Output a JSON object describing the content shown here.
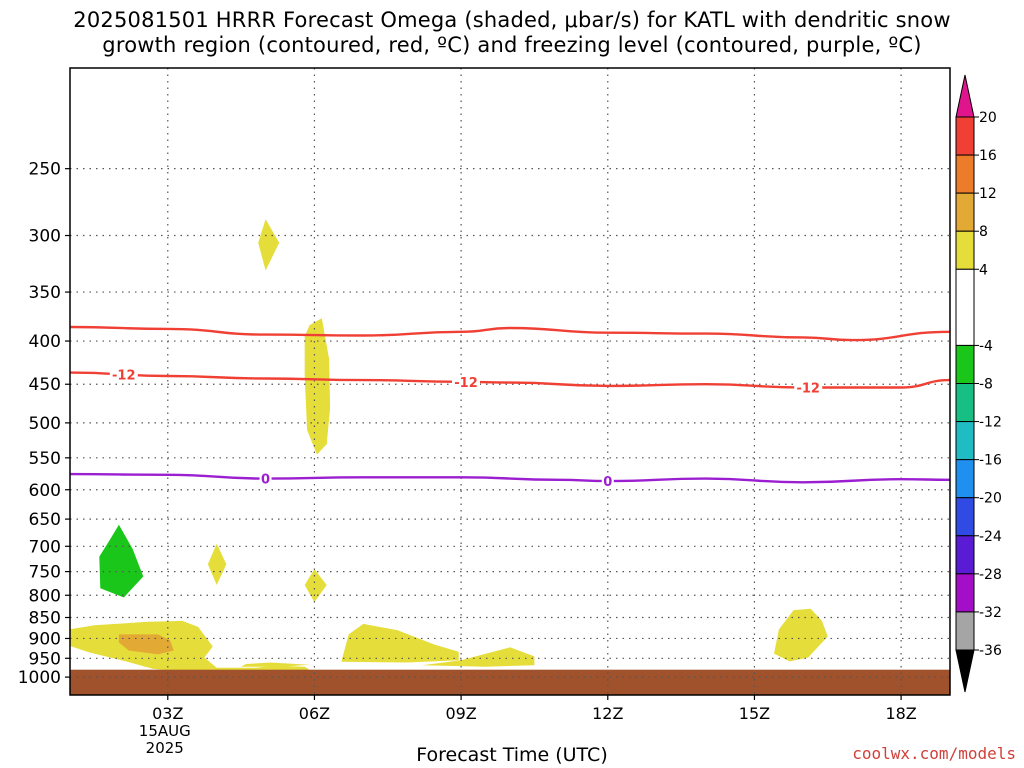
{
  "title_line1": "2025081501 HRRR Forecast Omega (shaded, μbar/s) for KATL with dendritic snow",
  "title_line2": "growth region (contoured, red, ºC) and freezing level (contoured, purple, ºC)",
  "credit": "coolwx.com/models",
  "chart_data": {
    "type": "contour",
    "title": "2025081501 HRRR Forecast Omega (shaded, μbar/s) for KATL with dendritic snow growth region (contoured, red, ºC) and freezing level (contoured, purple, ºC)",
    "xlabel": "Forecast Time (UTC)",
    "ylabel": "",
    "x_unit": "hour (UTC, 15 Aug 2025)",
    "y_unit": "hPa",
    "xlim": [
      1,
      19
    ],
    "ylim": [
      1050,
      190
    ],
    "y_scale": "log",
    "grid": true,
    "x_ticks": [
      {
        "x": 3,
        "label": "03Z",
        "sub1": "15AUG",
        "sub2": "2025"
      },
      {
        "x": 6,
        "label": "06Z"
      },
      {
        "x": 9,
        "label": "09Z"
      },
      {
        "x": 12,
        "label": "12Z"
      },
      {
        "x": 15,
        "label": "15Z"
      },
      {
        "x": 18,
        "label": "18Z"
      }
    ],
    "y_ticks": [
      250,
      300,
      350,
      400,
      450,
      500,
      550,
      600,
      650,
      700,
      750,
      800,
      850,
      900,
      950,
      1000
    ],
    "surface_fill": {
      "from": 980,
      "to": 1050,
      "color": "#a0522d"
    },
    "colorbar": {
      "labels": [
        "20",
        "16",
        "12",
        "8",
        "4",
        "-4",
        "-8",
        "-12",
        "-16",
        "-20",
        "-24",
        "-28",
        "-32",
        "-36"
      ],
      "bins": [
        {
          "from": 16,
          "to": 20,
          "color": "#f04035"
        },
        {
          "from": 12,
          "to": 16,
          "color": "#ec7b2a"
        },
        {
          "from": 8,
          "to": 12,
          "color": "#e3a935"
        },
        {
          "from": 4,
          "to": 8,
          "color": "#e5dd3a"
        },
        {
          "from": -4,
          "to": 4,
          "color": "#ffffff"
        },
        {
          "from": -8,
          "to": -4,
          "color": "#19c619"
        },
        {
          "from": -12,
          "to": -8,
          "color": "#17bf85"
        },
        {
          "from": -16,
          "to": -12,
          "color": "#1fbcc4"
        },
        {
          "from": -20,
          "to": -16,
          "color": "#1f8ff0"
        },
        {
          "from": -24,
          "to": -20,
          "color": "#2f4be3"
        },
        {
          "from": -28,
          "to": -24,
          "color": "#5a1bd5"
        },
        {
          "from": -32,
          "to": -28,
          "color": "#a30fc9"
        },
        {
          "from": -36,
          "to": -32,
          "color": "#a5a5a5"
        }
      ],
      "top_arrow_color": "#e0148c",
      "bottom_arrow_color": "#000000"
    },
    "shaded_regions": [
      {
        "name": "omega 4 to 8",
        "color": "#e5dd3a",
        "points": [
          [
            5.0,
            287
          ],
          [
            5.28,
            306
          ],
          [
            5.0,
            330
          ],
          [
            4.85,
            306
          ]
        ]
      },
      {
        "name": "omega 4 to 8",
        "color": "#e5dd3a",
        "points": [
          [
            5.9,
            383
          ],
          [
            6.15,
            376
          ],
          [
            6.3,
            420
          ],
          [
            6.32,
            480
          ],
          [
            6.25,
            530
          ],
          [
            6.05,
            545
          ],
          [
            5.85,
            510
          ],
          [
            5.8,
            440
          ],
          [
            5.8,
            395
          ]
        ]
      },
      {
        "name": "omega 4 to 8",
        "color": "#e5dd3a",
        "points": [
          [
            4.0,
            695
          ],
          [
            4.2,
            735
          ],
          [
            4.0,
            778
          ],
          [
            3.82,
            735
          ]
        ]
      },
      {
        "name": "omega 4 to 8",
        "color": "#e5dd3a",
        "points": [
          [
            6.0,
            745
          ],
          [
            6.25,
            778
          ],
          [
            6.0,
            815
          ],
          [
            5.8,
            778
          ]
        ]
      },
      {
        "name": "omega 4 to 8",
        "color": "#e5dd3a",
        "points": [
          [
            0.88,
            880
          ],
          [
            1.5,
            868
          ],
          [
            2.6,
            860
          ],
          [
            3.3,
            858
          ],
          [
            3.62,
            872
          ],
          [
            3.92,
            920
          ],
          [
            3.75,
            948
          ],
          [
            4.0,
            975
          ],
          [
            4.8,
            975
          ],
          [
            5.2,
            969
          ],
          [
            5.8,
            972
          ],
          [
            5.9,
            980
          ],
          [
            4.5,
            990
          ],
          [
            3.6,
            988
          ],
          [
            2.7,
            978
          ],
          [
            2.2,
            960
          ],
          [
            1.4,
            935
          ],
          [
            0.98,
            918
          ]
        ]
      },
      {
        "name": "omega 4 to 8",
        "color": "#e5dd3a",
        "points": [
          [
            7.0,
            865
          ],
          [
            7.7,
            880
          ],
          [
            8.45,
            915
          ],
          [
            8.95,
            933
          ],
          [
            8.95,
            955
          ],
          [
            7.9,
            961
          ],
          [
            6.55,
            959
          ],
          [
            6.6,
            935
          ],
          [
            6.7,
            890
          ]
        ]
      },
      {
        "name": "omega 4 to 8",
        "color": "#e5dd3a",
        "points": [
          [
            10.0,
            922
          ],
          [
            10.5,
            945
          ],
          [
            10.5,
            968
          ],
          [
            9.5,
            972
          ],
          [
            8.2,
            968
          ],
          [
            9.0,
            955
          ],
          [
            9.6,
            935
          ]
        ]
      },
      {
        "name": "omega 4 to 8",
        "color": "#e5dd3a",
        "points": [
          [
            15.8,
            833
          ],
          [
            16.15,
            830
          ],
          [
            16.38,
            858
          ],
          [
            16.5,
            895
          ],
          [
            16.1,
            948
          ],
          [
            15.72,
            958
          ],
          [
            15.4,
            938
          ],
          [
            15.5,
            878
          ]
        ]
      },
      {
        "name": "omega 4 to 8",
        "color": "#e5dd3a",
        "points": [
          [
            4.6,
            965
          ],
          [
            5.1,
            961
          ],
          [
            5.9,
            967
          ],
          [
            5.3,
            972
          ],
          [
            4.5,
            972
          ]
        ]
      },
      {
        "name": "omega 8 to 12",
        "color": "#e3a935",
        "points": [
          [
            2.0,
            890
          ],
          [
            2.8,
            890
          ],
          [
            3.05,
            905
          ],
          [
            3.12,
            930
          ],
          [
            2.8,
            940
          ],
          [
            2.2,
            930
          ],
          [
            2.0,
            910
          ]
        ]
      },
      {
        "name": "omega -8 to -4",
        "color": "#19c619",
        "points": [
          [
            2.0,
            660
          ],
          [
            2.28,
            705
          ],
          [
            2.5,
            760
          ],
          [
            2.1,
            805
          ],
          [
            1.62,
            785
          ],
          [
            1.6,
            720
          ],
          [
            1.8,
            690
          ]
        ]
      }
    ],
    "contours": [
      {
        "name": "dendritic growth upper (-18)",
        "color": "#f04035",
        "label": "",
        "x": [
          1,
          3,
          5,
          7,
          9,
          10,
          12,
          14,
          16,
          17,
          19
        ],
        "y": [
          385,
          387,
          393,
          394,
          390,
          386,
          391,
          392,
          396,
          399,
          390
        ],
        "label_x": []
      },
      {
        "name": "dendritic growth lower (-12)",
        "color": "#f04035",
        "label": "-12",
        "x": [
          1,
          3,
          5,
          7,
          9,
          10,
          12,
          14,
          16,
          18,
          19
        ],
        "y": [
          436,
          440,
          443,
          445,
          447,
          448,
          452,
          450,
          454,
          454,
          445
        ],
        "label_x": [
          2.1,
          9.1,
          16.1
        ]
      },
      {
        "name": "freezing level (0)",
        "color": "#9b1ed0",
        "label": "0",
        "x": [
          1,
          3,
          5,
          7,
          9,
          11,
          12,
          14,
          16,
          18,
          19
        ],
        "y": [
          575,
          576,
          582,
          580,
          580,
          584,
          586,
          582,
          588,
          583,
          584
        ],
        "label_x": [
          5.0,
          12.0
        ]
      }
    ]
  }
}
